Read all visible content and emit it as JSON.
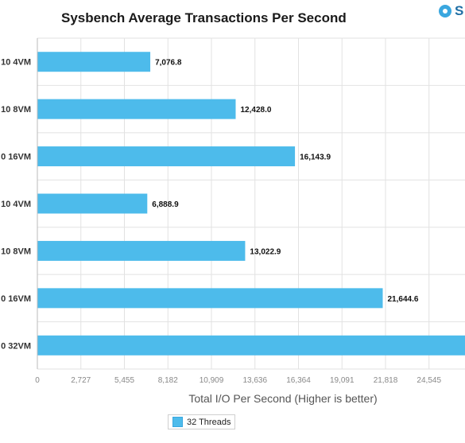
{
  "chart_data": {
    "type": "bar",
    "orientation": "horizontal",
    "title": "Sysbench Average Transactions Per Second",
    "xlabel": "Total I/O Per Second (Higher is better)",
    "ylabel": "",
    "categories": [
      "10 4VM",
      "10 8VM",
      "0 16VM",
      "10 4VM",
      "10 8VM",
      "0 16VM",
      "0 32VM"
    ],
    "series": [
      {
        "name": "32 Threads",
        "values": [
          7076.8,
          12428.0,
          16143.9,
          6888.9,
          13022.9,
          21644.6,
          26800
        ],
        "labels": [
          "7,076.8",
          "12,428.0",
          "16,143.9",
          "6,888.9",
          "13,022.9",
          "21,644.6",
          ""
        ],
        "color": "#4dbbeb"
      }
    ],
    "xlim": [
      0,
      26800
    ],
    "xticks": [
      0,
      2727,
      5455,
      8182,
      10909,
      13636,
      16364,
      19091,
      21818,
      24545
    ],
    "xtick_labels": [
      "0",
      "2,727",
      "5,455",
      "8,182",
      "10,909",
      "13,636",
      "16,364",
      "19,091",
      "21,818",
      "24,545"
    ],
    "grid": true,
    "legend_position": "bottom"
  },
  "brand": {
    "text": "S"
  },
  "colors": {
    "bar": "#4dbbeb",
    "grid": "#e2e2e2",
    "axis": "#bbbbbb"
  }
}
